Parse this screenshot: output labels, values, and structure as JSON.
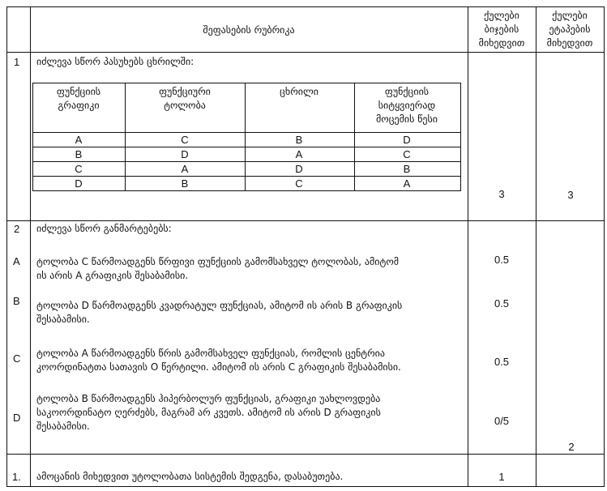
{
  "header": {
    "number_col": "",
    "rubric_title": "შეფასების რუბრიკა",
    "col_boys": [
      "ქულები",
      "ბიჯების",
      "მიხედვით"
    ],
    "col_stages": [
      "ქულები",
      "ეტაპების",
      "მიხედვით"
    ]
  },
  "row1": {
    "number": "1",
    "intro": "იძლევა სწორ პასუხებს ცხრილში:",
    "inner_table": {
      "headers": [
        [
          "ფუნქციის",
          "გრაფიკი"
        ],
        [
          "ფუნქციური",
          "ტოლობა"
        ],
        [
          "ცხრილი"
        ],
        [
          "ფუნქციის",
          "სიტყვიერად",
          "მოცემის წესი"
        ]
      ],
      "rows": [
        [
          "A",
          "C",
          "B",
          "D"
        ],
        [
          "B",
          "D",
          "A",
          "C"
        ],
        [
          "C",
          "A",
          "D",
          "B"
        ],
        [
          "D",
          "B",
          "C",
          "A"
        ]
      ]
    },
    "score_steps": "3",
    "score_stages": "3"
  },
  "row2": {
    "number": "2",
    "intro": "იძლევა სწორ განმარტებებს:",
    "items": [
      {
        "label": "A",
        "lines": [
          "ტოლობა C  წარმოადგენს წრფივი ფუნქციის გამომსახველ ტოლობას, ამიტომ",
          "ის არის  A  გრაფიკის შესაბამისი."
        ],
        "score": "0.5"
      },
      {
        "label": "B",
        "lines": [
          "ტოლობა  D  წარმოადგენს კვადრატულ ფუნქციას, ამიტომ ის არის B გრაფიკის",
          "შესაბამისი."
        ],
        "score": "0.5"
      },
      {
        "label": "C",
        "lines": [
          "ტოლობა  A  წარმოადგენს წრის გამომსახველ ფუნქციას, რომლის ცენტრია",
          "კოორდინატთა სათავის O  წერტილი. ამიტომ ის არის  C  გრაფიკის შესაბამისი."
        ],
        "score": "0.5"
      },
      {
        "label": "D",
        "lines": [
          "ტოლობა  B   წარმოადგენს ჰიპერბოლურ ფუნქციას, გრაფიკი უახლოვდება",
          "საკოორდინატო ღერძებს, მაგრამ არ კვეთს. ამიტომ ის არის  D  გრაფიკის",
          "შესაბამისი."
        ],
        "score": "0/5"
      }
    ],
    "score_stages": "2"
  },
  "row3": {
    "number": "1.",
    "text": "ამოცანის მიხედვით უტოლობათა სისტემის შედგენა, დასაბუთება.",
    "score_steps": "1",
    "score_stages": ""
  }
}
